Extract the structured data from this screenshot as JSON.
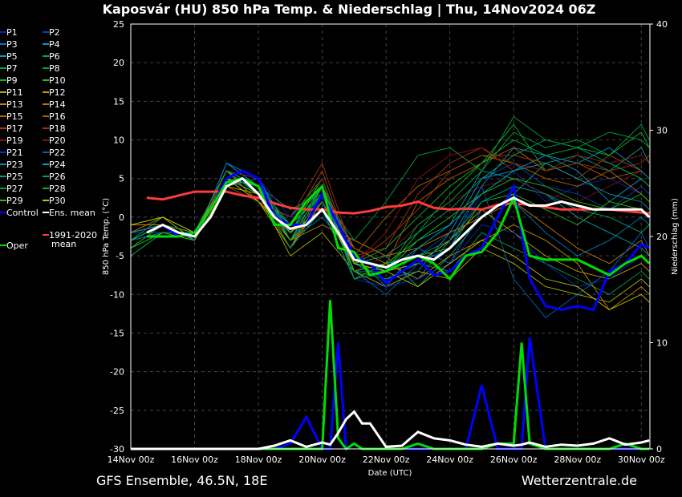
{
  "chart_data": {
    "type": "line",
    "title": "Kaposvár  (HU)  850 hPa Temp. & Niederschlag | Thu, 14Nov2024 06Z",
    "xlabel": "Date (UTC)",
    "ylabel": "850 hPa Temp. (°C)",
    "ylabel_right": "Niederschlag (mm)",
    "footer_left": "GFS Ensemble, 46.5N, 18E",
    "footer_right": "Wetterzentrale.de",
    "x_ticks": [
      "14Nov 00z",
      "16Nov 00z",
      "18Nov 00z",
      "20Nov 00z",
      "22Nov 00z",
      "24Nov 00z",
      "26Nov 00z",
      "28Nov 00z",
      "30Nov 00z"
    ],
    "x_range_days_from_14Nov00z": [
      0,
      16.27
    ],
    "ylim": [
      -30,
      25
    ],
    "y_ticks": [
      25,
      20,
      15,
      10,
      5,
      0,
      -5,
      -10,
      -15,
      -20,
      -25,
      -30
    ],
    "ylim_right": [
      0,
      40
    ],
    "y_ticks_right": [
      40,
      30,
      20,
      10,
      0
    ],
    "grid": true,
    "legend_placement": "left outside",
    "colors": {
      "control": "#0000ff",
      "mean": "#ffffff",
      "oper": "#00dd00",
      "climate": "#ff3b3b",
      "members": [
        "#0022cc",
        "#0044bb",
        "#0077bb",
        "#0099bb",
        "#00a0a0",
        "#00a077",
        "#00a050",
        "#00a040",
        "#10b020",
        "#20c010",
        "#b0b000",
        "#c0a000",
        "#c08800",
        "#c07a00",
        "#b06600",
        "#b05a00",
        "#a04010",
        "#a03010",
        "#901010",
        "#801010",
        "#0030c0",
        "#0060c0",
        "#0090c0",
        "#00a0b0",
        "#00a080",
        "#00a060",
        "#00a040",
        "#10b030",
        "#20c000",
        "#c0c000"
      ]
    },
    "legend": {
      "members": [
        "P1",
        "P2",
        "P3",
        "P4",
        "P5",
        "P6",
        "P7",
        "P8",
        "P9",
        "P10",
        "P11",
        "P12",
        "P13",
        "P14",
        "P15",
        "P16",
        "P17",
        "P18",
        "P19",
        "P20",
        "P21",
        "P22",
        "P23",
        "P24",
        "P25",
        "P26",
        "P27",
        "P28",
        "P29",
        "P30"
      ],
      "control": "Control",
      "mean": "Ens. mean",
      "climate": "1991-2020 mean",
      "oper": "Oper"
    },
    "temp_x_days": [
      0.5,
      1,
      1.5,
      2,
      2.5,
      3,
      3.5,
      4,
      4.5,
      5,
      5.5,
      6,
      6.5,
      7,
      7.5,
      8,
      8.5,
      9,
      9.5,
      10,
      10.5,
      11,
      11.5,
      12,
      12.5,
      13,
      13.5,
      14,
      14.5,
      15,
      15.5,
      16,
      16.25
    ],
    "ens_mean": [
      -2,
      -1,
      -2,
      -2.5,
      0,
      4,
      5,
      3,
      0,
      -1.5,
      -1,
      1,
      -2,
      -5.5,
      -6,
      -6.5,
      -5.5,
      -5,
      -5.5,
      -4,
      -2,
      0,
      1.5,
      2.5,
      1.5,
      1.5,
      2,
      1.5,
      1,
      1,
      1,
      1,
      0
    ],
    "control": [
      -2,
      -1,
      -2.5,
      -2,
      1,
      5,
      6,
      5,
      0,
      -1,
      -1,
      3,
      -1,
      -5,
      -6,
      -8.5,
      -7,
      -5.5,
      -7.5,
      -7,
      -5,
      -4,
      0,
      4,
      -8,
      -11.5,
      -12,
      -11.5,
      -12,
      -7,
      -6,
      -3.5,
      -4
    ],
    "oper": [
      -2.5,
      -2.5,
      -2.5,
      -2,
      1,
      4.5,
      5,
      4,
      -1,
      -1,
      2,
      4,
      -4,
      -4.5,
      -7.5,
      -7,
      -6,
      -5,
      -6,
      -8,
      -5,
      -4.5,
      -2,
      2.5,
      -5,
      -5.5,
      -5.5,
      -5.5,
      -6.5,
      -7.5,
      -6,
      -5,
      -6
    ],
    "climate_mean": [
      2.5,
      2.3,
      2.8,
      3.3,
      3.3,
      3.3,
      2.8,
      2.5,
      1.8,
      1.2,
      1,
      1,
      0.6,
      0.5,
      0.8,
      1.3,
      1.5,
      2,
      1.2,
      1,
      1.1,
      1,
      1.6,
      1.8,
      1.6,
      1.3,
      1,
      1,
      1,
      1,
      0.8,
      0.6,
      0.5
    ],
    "members_daily_x_days": [
      0,
      1,
      2,
      3,
      4,
      5,
      6,
      7,
      8,
      9,
      10,
      11,
      12,
      13,
      14,
      15,
      16,
      16.25
    ],
    "members": [
      [
        -3,
        -1,
        -3,
        5,
        3,
        -2,
        2,
        -6,
        -8,
        -6,
        -4,
        3,
        6,
        2,
        4,
        5,
        3,
        2
      ],
      [
        -2,
        -2,
        -2,
        6,
        2,
        0,
        4,
        -7,
        -7,
        -5,
        -2,
        5,
        7,
        4,
        3,
        1,
        4,
        3
      ],
      [
        -4,
        -1,
        -3,
        4,
        5,
        -3,
        0,
        -5,
        -9,
        -4,
        -6,
        1,
        2,
        -2,
        -5,
        -3,
        0,
        -1
      ],
      [
        -2,
        -1,
        -3,
        7,
        4,
        -1,
        3,
        -4,
        -6,
        -8,
        -3,
        4,
        9,
        8,
        6,
        2,
        5,
        4
      ],
      [
        -5,
        -2,
        -2,
        5,
        3,
        -4,
        1,
        -8,
        -7,
        -3,
        -1,
        6,
        5,
        3,
        0,
        -2,
        -4,
        -5
      ],
      [
        -3,
        0,
        -2,
        4,
        2,
        0,
        5,
        -6,
        -5,
        -9,
        -5,
        0,
        3,
        7,
        8,
        6,
        9,
        7
      ],
      [
        -2,
        -1,
        -3,
        6,
        5,
        -2,
        2,
        -7,
        -8,
        -6,
        -7,
        -2,
        -4,
        -6,
        -8,
        -10,
        -7,
        -8
      ],
      [
        -3,
        -2,
        -2,
        5,
        4,
        1,
        3,
        -3,
        2,
        8,
        9,
        6,
        11,
        9,
        10,
        8,
        12,
        10
      ],
      [
        -4,
        -1,
        -3,
        6,
        3,
        -1,
        4,
        -6,
        -7,
        -2,
        3,
        7,
        12,
        6,
        8,
        7,
        5,
        4
      ],
      [
        -3,
        -2,
        -2,
        5,
        4,
        -2,
        5,
        -8,
        -6,
        -5,
        -4,
        2,
        3,
        1,
        -1,
        2,
        1,
        0
      ],
      [
        -1,
        0,
        -3,
        4,
        3,
        -5,
        -2,
        -7,
        -9,
        -7,
        -8,
        -4,
        -6,
        -9,
        -10,
        -11,
        -8,
        -9
      ],
      [
        -2,
        -1,
        -2,
        6,
        2,
        -4,
        2,
        -5,
        -7,
        -6,
        -3,
        1,
        -2,
        -5,
        -7,
        -8,
        -6,
        -7
      ],
      [
        -1,
        -1,
        -3,
        5,
        4,
        -3,
        1,
        -4,
        -6,
        -8,
        -5,
        -3,
        -1,
        -3,
        -6,
        -12,
        -9,
        -10
      ],
      [
        -2,
        0,
        -2,
        6,
        2,
        -3,
        -1,
        -3,
        -5,
        -4,
        -2,
        0,
        2,
        -1,
        -4,
        -6,
        -3,
        -5
      ],
      [
        -3,
        -1,
        -3,
        5,
        3,
        -4,
        3,
        -5,
        0,
        4,
        6,
        8,
        7,
        5,
        4,
        6,
        3,
        2
      ],
      [
        -2,
        -1,
        -2,
        6,
        4,
        -2,
        4,
        -4,
        -6,
        2,
        5,
        7,
        9,
        6,
        7,
        5,
        6,
        5
      ],
      [
        -3,
        -2,
        -3,
        5,
        3,
        -1,
        6,
        -6,
        -3,
        1,
        6,
        8,
        8,
        7,
        5,
        8,
        6,
        5
      ],
      [
        -2,
        -1,
        -2,
        4,
        2,
        0,
        7,
        -5,
        -4,
        3,
        7,
        9,
        6,
        8,
        7,
        6,
        7,
        8
      ],
      [
        -3,
        -1,
        -3,
        6,
        5,
        -2,
        2,
        -6,
        -2,
        5,
        8,
        9,
        7,
        6,
        8,
        7,
        8,
        7
      ],
      [
        -4,
        -2,
        -2,
        5,
        3,
        -1,
        5,
        -7,
        -5,
        -1,
        2,
        4,
        5,
        3,
        2,
        4,
        6,
        5
      ],
      [
        -2,
        -1,
        -3,
        7,
        5,
        0,
        4,
        -8,
        -9,
        -8,
        -6,
        -1,
        -2,
        -6,
        -9,
        -8,
        -5,
        -6
      ],
      [
        -3,
        -2,
        -2,
        6,
        4,
        -3,
        3,
        -7,
        -10,
        -6,
        -4,
        4,
        -8,
        -13,
        -10,
        -7,
        -2,
        -4
      ],
      [
        -3,
        -1,
        -3,
        7,
        5,
        -2,
        4,
        -6,
        -8,
        -7,
        -2,
        5,
        6,
        8,
        7,
        9,
        6,
        5
      ],
      [
        -2,
        -1,
        -2,
        6,
        3,
        -1,
        3,
        -5,
        -7,
        -4,
        -1,
        3,
        6,
        7,
        5,
        3,
        2,
        1
      ],
      [
        -4,
        -2,
        -3,
        5,
        4,
        -3,
        2,
        -7,
        -6,
        -5,
        -3,
        2,
        4,
        3,
        1,
        0,
        -2,
        -1
      ],
      [
        -3,
        -1,
        -2,
        6,
        4,
        -2,
        3,
        -6,
        -5,
        -2,
        1,
        5,
        8,
        10,
        9,
        7,
        5,
        4
      ],
      [
        -5,
        -2,
        -3,
        5,
        3,
        -4,
        4,
        -8,
        -7,
        -1,
        2,
        6,
        13,
        10,
        9,
        11,
        10,
        9
      ],
      [
        -3,
        -1,
        -2,
        6,
        4,
        -1,
        3,
        -6,
        -4,
        0,
        4,
        7,
        10,
        8,
        9,
        8,
        11,
        9
      ],
      [
        -4,
        -2,
        -3,
        5,
        3,
        -3,
        4,
        -7,
        -6,
        -3,
        0,
        3,
        5,
        4,
        2,
        1,
        3,
        2
      ],
      [
        -1,
        0,
        -2,
        5,
        2,
        -2,
        1,
        -6,
        -7,
        -9,
        -6,
        -3,
        -5,
        -8,
        -9,
        -12,
        -10,
        -11
      ]
    ],
    "precip_x_days": [
      0,
      1,
      2,
      3,
      4,
      4.5,
      5,
      5.5,
      6,
      6.25,
      6.5,
      6.75,
      7,
      7.25,
      7.5,
      8,
      8.5,
      9,
      9.5,
      10,
      10.5,
      11,
      11.5,
      12,
      12.25,
      12.5,
      13,
      13.5,
      14,
      14.5,
      15,
      15.5,
      16,
      16.25
    ],
    "precip_ens_mean": [
      0,
      0,
      0,
      0,
      0,
      0.3,
      0.8,
      0.2,
      0.6,
      0.4,
      1.5,
      2.8,
      3.5,
      2.4,
      2.4,
      0.2,
      0.3,
      1.6,
      1,
      0.8,
      0.4,
      0.2,
      0.5,
      0.3,
      0.4,
      0.6,
      0.2,
      0.4,
      0.3,
      0.5,
      1,
      0.4,
      0.6,
      0.8
    ],
    "precip_oper": [
      0,
      0,
      0,
      0,
      0,
      0,
      0,
      0,
      0,
      14,
      1,
      0,
      0.5,
      0,
      0,
      0,
      0,
      0.5,
      0,
      0,
      0,
      0,
      0.5,
      0.5,
      10,
      0.5,
      0,
      0,
      0,
      0,
      0,
      0.5,
      0,
      0
    ],
    "precip_control": [
      0,
      0,
      0,
      0,
      0,
      0,
      0.5,
      3,
      0,
      0,
      10,
      0,
      0.5,
      0,
      0,
      0,
      0,
      0,
      0,
      0,
      0,
      6,
      0,
      0,
      0,
      10.5,
      0,
      0,
      0,
      0,
      0,
      0,
      0,
      0
    ]
  }
}
